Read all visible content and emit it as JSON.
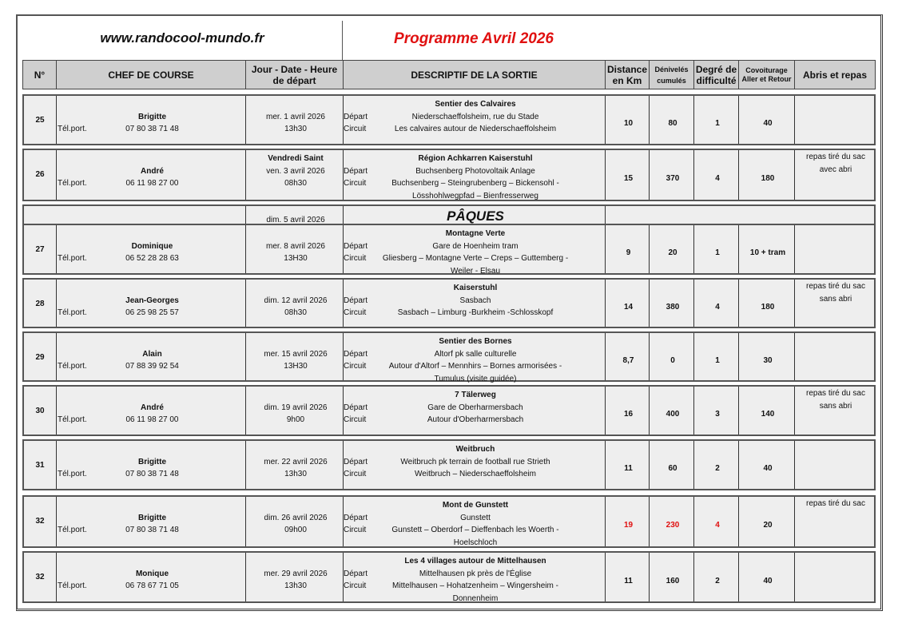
{
  "site": "www.randocool-mundo.fr",
  "title": "Programme Avril 2026",
  "headers": {
    "num": "N°",
    "chef": "CHEF DE COURSE",
    "date": "Jour - Date - Heure de départ",
    "desc": "DESCRIPTIF DE LA SORTIE",
    "dist": "Distance en Km",
    "deniv": "Dénivelés cumulés",
    "degre": "Degré de difficulté",
    "covoit": "Covoiturage Aller et Retour",
    "abris": "Abris et repas"
  },
  "labels": {
    "tel": "Tél.port.",
    "depart": "Départ",
    "circuit": "Circuit"
  },
  "holiday": {
    "date": "dim. 5 avril 2026",
    "name": "PÂQUES"
  },
  "highlight_color": "#e01010",
  "rows": [
    {
      "num": "25",
      "chef": "Brigitte",
      "phone": "07 80 38 71 48",
      "note": "",
      "date": "mer. 1 avril 2026",
      "time": "13h30",
      "title": "Sentier des Calvaires",
      "depart": "Niederschaeffolsheim, rue du Stade",
      "circuit": [
        "Les calvaires autour de Niederschaeffolsheim"
      ],
      "dist": "10",
      "deniv": "80",
      "degre": "1",
      "covoit": "40",
      "abris": [],
      "red": false
    },
    {
      "num": "26",
      "chef": "André",
      "phone": "06 11 98 27 00",
      "note": "Vendredi Saint",
      "date": "ven. 3 avril 2026",
      "time": "08h30",
      "title": "Région Achkarren Kaiserstuhl",
      "depart": "Buchsenberg Photovoltaik Anlage",
      "circuit": [
        "Buchsenberg – Steingrubenberg – Bickensohl -",
        "Lösshohlwegpfad – Bienfresserweg"
      ],
      "dist": "15",
      "deniv": "370",
      "degre": "4",
      "covoit": "180",
      "abris": [
        "repas tiré du sac",
        "avec abri"
      ],
      "red": false
    },
    {
      "num": "27",
      "chef": "Dominique",
      "phone": "06 52 28 28 63",
      "note": "",
      "date": "mer. 8 avril 2026",
      "time": "13H30",
      "title": "Montagne Verte",
      "depart": "Gare de Hoenheim tram",
      "circuit": [
        "Gliesberg – Montagne Verte – Creps – Guttemberg -",
        "Weiler - Elsau"
      ],
      "dist": "9",
      "deniv": "20",
      "degre": "1",
      "covoit": "10 + tram",
      "abris": [],
      "red": false
    },
    {
      "num": "28",
      "chef": "Jean-Georges",
      "phone": "06 25 98 25 57",
      "note": "",
      "date": "dim. 12 avril 2026",
      "time": "08h30",
      "title": "Kaiserstuhl",
      "depart": "Sasbach",
      "circuit": [
        "Sasbach – Limburg -Burkheim -Schlosskopf"
      ],
      "dist": "14",
      "deniv": "380",
      "degre": "4",
      "covoit": "180",
      "abris": [
        "repas tiré du sac",
        "sans abri"
      ],
      "red": false
    },
    {
      "num": "29",
      "chef": "Alain",
      "phone": "07 88 39 92 54",
      "note": "",
      "date": "mer. 15 avril 2026",
      "time": "13H30",
      "title": "Sentier des Bornes",
      "depart": "Altorf pk salle culturelle",
      "circuit": [
        "Autour d'Altorf – Mennhirs – Bornes armorisées -",
        "Tumulus (visite guidée)"
      ],
      "dist": "8,7",
      "deniv": "0",
      "degre": "1",
      "covoit": "30",
      "abris": [],
      "red": false
    },
    {
      "num": "30",
      "chef": "André",
      "phone": "06 11 98 27 00",
      "note": "",
      "date": "dim. 19 avril 2026",
      "time": "9h00",
      "title": "7 Tälerweg",
      "depart": "Gare de Oberharmersbach",
      "circuit": [
        "Autour d'Oberharmersbach"
      ],
      "dist": "16",
      "deniv": "400",
      "degre": "3",
      "covoit": "140",
      "abris": [
        "repas tiré du sac",
        "sans abri"
      ],
      "red": false
    },
    {
      "num": "31",
      "chef": "Brigitte",
      "phone": "07 80 38 71 48",
      "note": "",
      "date": "mer. 22 avril 2026",
      "time": "13h30",
      "title": "Weitbruch",
      "depart": "Weitbruch pk terrain de football rue Strieth",
      "circuit": [
        "Weitbruch – Niederschaeffolsheim"
      ],
      "dist": "11",
      "deniv": "60",
      "degre": "2",
      "covoit": "40",
      "abris": [],
      "red": false
    },
    {
      "num": "32",
      "chef": "Brigitte",
      "phone": "07 80 38 71 48",
      "note": "",
      "date": "dim. 26 avril 2026",
      "time": "09h00",
      "title": "Mont de Gunstett",
      "depart": "Gunstett",
      "circuit": [
        "Gunstett – Oberdorf – Dieffenbach les Woerth -",
        "Hoelschloch"
      ],
      "dist": "19",
      "deniv": "230",
      "degre": "4",
      "covoit": "20",
      "abris": [
        "repas tiré du sac"
      ],
      "red": true
    },
    {
      "num": "32",
      "chef": "Monique",
      "phone": "06 78 67 71 05",
      "note": "",
      "date": "mer. 29 avril 2026",
      "time": "13h30",
      "title": "Les 4 villages autour de Mittelhausen",
      "depart": "Mittelhausen pk près de l'Église",
      "circuit": [
        "Mittelhausen – Hohatzenheim – Wingersheim -",
        "Donnenheim"
      ],
      "dist": "11",
      "deniv": "160",
      "degre": "2",
      "covoit": "40",
      "abris": [],
      "red": false
    }
  ]
}
